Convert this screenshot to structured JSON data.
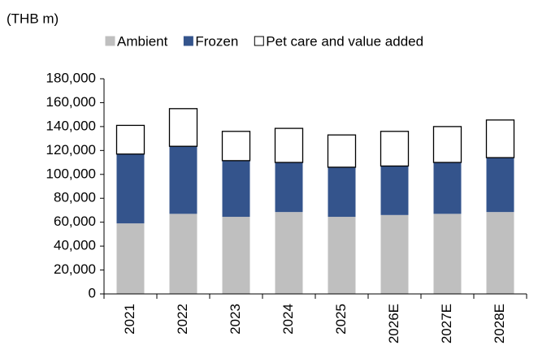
{
  "chart_data": {
    "type": "stacked_bar",
    "y_label": "(THB m)",
    "categories": [
      "2021",
      "2022",
      "2023",
      "2024",
      "2025",
      "2026E",
      "2027E",
      "2028E"
    ],
    "series": [
      {
        "name": "Ambient",
        "color": "#bfbfbf",
        "values": [
          59000,
          67000,
          64500,
          68500,
          64500,
          66000,
          67000,
          68500
        ]
      },
      {
        "name": "Frozen",
        "color": "#34548c",
        "values": [
          58000,
          56500,
          47000,
          41500,
          41500,
          41000,
          43000,
          45500
        ]
      },
      {
        "name": "Pet care and value added",
        "color": "#ffffff",
        "values": [
          24000,
          31500,
          24500,
          28500,
          27000,
          29000,
          30000,
          31500
        ]
      }
    ],
    "ylim": [
      0,
      180000
    ],
    "yticks": [
      0,
      {
        "value": 20000,
        "label": "20,000"
      },
      {
        "value": 40000,
        "label": "40,000"
      },
      {
        "value": 60000,
        "label": "60,000"
      },
      {
        "value": 80000,
        "label": "80,000"
      },
      {
        "value": 100000,
        "label": "100,000"
      },
      {
        "value": 120000,
        "label": "120,000"
      },
      {
        "value": 140000,
        "label": "140,000"
      },
      {
        "value": 160000,
        "label": "160,000"
      },
      {
        "value": 180000,
        "label": "180,000"
      }
    ],
    "legend": "top"
  }
}
